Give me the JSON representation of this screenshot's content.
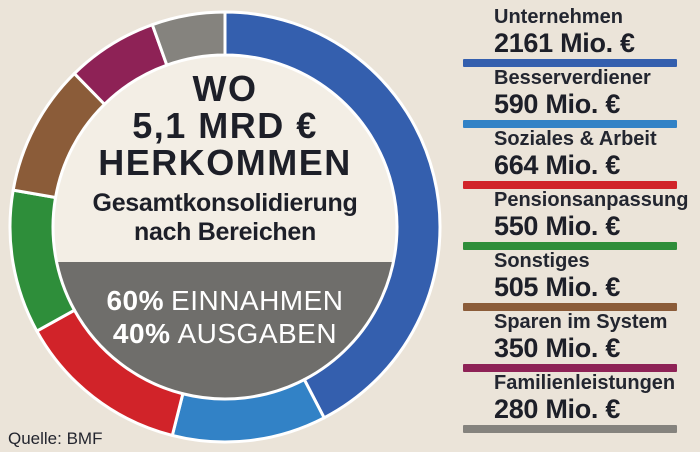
{
  "colors": {
    "background": "#ebe4d9",
    "donut_center": "#f3eee5",
    "chord_gray": "#6f6e6b",
    "title_text": "#1d1f28",
    "split_text": "#ffffff",
    "segment_gap": "#ffffff"
  },
  "chart_data": {
    "type": "donut",
    "title_lines": [
      "WO",
      "5,1 MRD €",
      "HERKOMMEN"
    ],
    "subtitle_lines": [
      "Gesamtkonsolidierung",
      "nach Bereichen"
    ],
    "center_note": [
      {
        "pct": "60%",
        "label": "EINNAHMEN"
      },
      {
        "pct": "40%",
        "label": "AUSGABEN"
      }
    ],
    "total_value_mio": 5100,
    "segments": [
      {
        "label": "Unternehmen",
        "value": 2161,
        "display": "2161 Mio. €",
        "color": "#345fae"
      },
      {
        "label": "Besserverdiener",
        "value": 590,
        "display": "590 Mio. €",
        "color": "#3282c6"
      },
      {
        "label": "Soziales & Arbeit",
        "value": 664,
        "display": "664 Mio. €",
        "color": "#d12329"
      },
      {
        "label": "Pensionsanpassung",
        "value": 550,
        "display": "550 Mio. €",
        "color": "#2e8e3a"
      },
      {
        "label": "Sonstiges",
        "value": 505,
        "display": "505 Mio. €",
        "color": "#8b5c39"
      },
      {
        "label": "Sparen im System",
        "value": 350,
        "display": "350 Mio. €",
        "color": "#8e2256"
      },
      {
        "label": "Familienleistungen",
        "value": 280,
        "display": "280 Mio. €",
        "color": "#85837e"
      }
    ],
    "legend_position": "right",
    "source": "Quelle: BMF"
  }
}
